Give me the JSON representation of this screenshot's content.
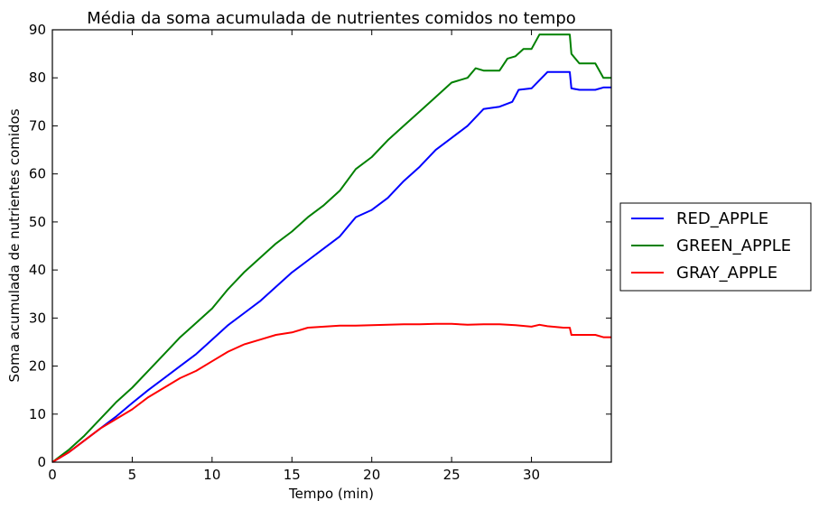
{
  "chart_data": {
    "type": "line",
    "title": "Média da soma acumulada de nutrientes comidos no tempo",
    "xlabel": "Tempo (min)",
    "ylabel": "Soma acumulada de nutrientes comidos",
    "xlim": [
      0,
      35
    ],
    "ylim": [
      0,
      90
    ],
    "xticks": [
      0,
      5,
      10,
      15,
      20,
      25,
      30
    ],
    "yticks": [
      0,
      10,
      20,
      30,
      40,
      50,
      60,
      70,
      80,
      90
    ],
    "grid": false,
    "legend_position": "right, outside plot",
    "series": [
      {
        "name": "RED_APPLE",
        "color": "#0000ff",
        "x": [
          0,
          1,
          2,
          3,
          4,
          5,
          6,
          7,
          8,
          9,
          10,
          11,
          12,
          13,
          14,
          15,
          16,
          17,
          18,
          19,
          20,
          21,
          22,
          23,
          24,
          25,
          26,
          27,
          28,
          28.8,
          29.2,
          30,
          30.5,
          31,
          32.4,
          32.5,
          33,
          34,
          34.5,
          35
        ],
        "y": [
          0,
          2,
          4.5,
          7,
          9.5,
          12.3,
          15,
          17.5,
          20,
          22.5,
          25.5,
          28.5,
          31,
          33.5,
          36.5,
          39.5,
          42,
          44.5,
          47,
          51,
          52.5,
          55,
          58.5,
          61.5,
          65,
          67.5,
          70,
          73.5,
          74,
          75,
          77.5,
          77.8,
          79.5,
          81.2,
          81.2,
          77.8,
          77.5,
          77.5,
          78,
          78
        ]
      },
      {
        "name": "GREEN_APPLE",
        "color": "#008000",
        "x": [
          0,
          1,
          2,
          3,
          4,
          5,
          6,
          7,
          8,
          9,
          10,
          11,
          12,
          13,
          14,
          15,
          16,
          17,
          18,
          19,
          20,
          21,
          22,
          23,
          24,
          25,
          26,
          26.5,
          27,
          28,
          28.5,
          29,
          29.5,
          30,
          30.5,
          31,
          32.4,
          32.5,
          33,
          34,
          34.5,
          35
        ],
        "y": [
          0,
          2.5,
          5.5,
          9,
          12.5,
          15.5,
          19,
          22.5,
          26,
          29,
          32,
          36,
          39.5,
          42.5,
          45.5,
          48,
          51,
          53.5,
          56.5,
          61,
          63.5,
          67,
          70,
          73,
          76,
          79,
          80,
          82,
          81.5,
          81.5,
          84,
          84.5,
          86,
          86,
          89,
          89,
          89,
          85,
          83,
          83,
          80,
          80
        ]
      },
      {
        "name": "GRAY_APPLE",
        "color": "#ff0000",
        "x": [
          0,
          1,
          2,
          3,
          4,
          5,
          6,
          7,
          8,
          9,
          10,
          11,
          12,
          13,
          14,
          15,
          16,
          17,
          18,
          19,
          20,
          21,
          22,
          23,
          24,
          25,
          26,
          27,
          28,
          29,
          30,
          30.5,
          31,
          32,
          32.4,
          32.5,
          33,
          34,
          34.5,
          35
        ],
        "y": [
          0,
          2,
          4.5,
          7,
          9,
          11,
          13.5,
          15.5,
          17.5,
          19,
          21,
          23,
          24.5,
          25.5,
          26.5,
          27,
          28,
          28.2,
          28.4,
          28.4,
          28.5,
          28.6,
          28.7,
          28.7,
          28.8,
          28.8,
          28.6,
          28.7,
          28.7,
          28.5,
          28.2,
          28.6,
          28.3,
          28,
          28,
          26.5,
          26.5,
          26.5,
          26,
          26
        ]
      }
    ]
  }
}
